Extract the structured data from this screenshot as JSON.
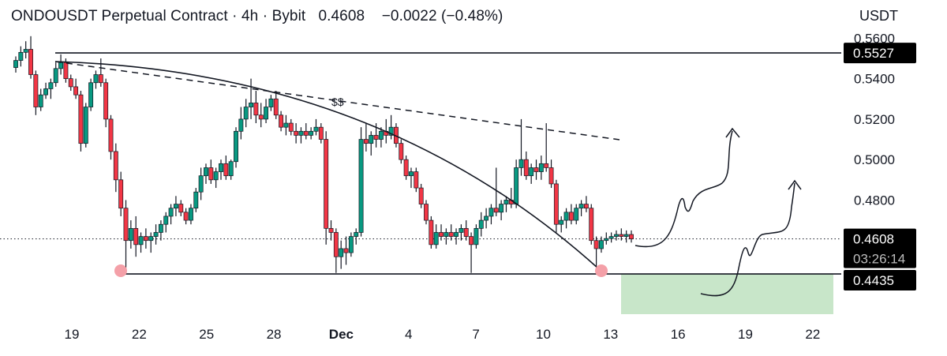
{
  "header": {
    "symbol": "ONDOUSDT Perpetual Contract",
    "sep1": "·",
    "interval": "4h",
    "sep2": "·",
    "exchange": "Bybit",
    "price": "0.4608",
    "change": "−0.0022 (−0.48%)"
  },
  "currency_label": "USDT",
  "chart_data": {
    "type": "candlestick",
    "ylim": [
      0.424,
      0.566
    ],
    "y_ticks": [
      "0.5600",
      "0.5400",
      "0.5200",
      "0.5000",
      "0.4800"
    ],
    "x_ticks": [
      {
        "label": "19",
        "day": 19
      },
      {
        "label": "22",
        "day": 22
      },
      {
        "label": "25",
        "day": 25
      },
      {
        "label": "28",
        "day": 28
      },
      {
        "label": "Dec",
        "day": 31,
        "bold": true
      },
      {
        "label": "4",
        "day": 34
      },
      {
        "label": "7",
        "day": 37
      },
      {
        "label": "10",
        "day": 40
      },
      {
        "label": "13",
        "day": 43
      },
      {
        "label": "16",
        "day": 46
      },
      {
        "label": "19",
        "day": 49
      },
      {
        "label": "22",
        "day": 52
      }
    ],
    "current_price": {
      "value": 0.4608,
      "label": "0.4608",
      "countdown": "03:26:14"
    },
    "levels": [
      {
        "value": 0.5527,
        "label": "0.5527"
      },
      {
        "value": 0.4435,
        "label": "0.4435"
      }
    ],
    "annotation_text": "$$",
    "colors": {
      "up": "#089981",
      "down": "#f23645",
      "zone": "#c8e6c9",
      "marker": "#f4a0a8",
      "tag": "#000000"
    },
    "candles": [
      [
        0.5455,
        0.551,
        0.543,
        0.549
      ],
      [
        0.549,
        0.556,
        0.546,
        0.553
      ],
      [
        0.553,
        0.5585,
        0.55,
        0.5545
      ],
      [
        0.5545,
        0.561,
        0.54,
        0.542
      ],
      [
        0.542,
        0.544,
        0.522,
        0.526
      ],
      [
        0.526,
        0.535,
        0.524,
        0.532
      ],
      [
        0.532,
        0.538,
        0.53,
        0.535
      ],
      [
        0.535,
        0.54,
        0.53,
        0.538
      ],
      [
        0.538,
        0.548,
        0.536,
        0.545
      ],
      [
        0.545,
        0.552,
        0.542,
        0.548
      ],
      [
        0.548,
        0.55,
        0.538,
        0.54
      ],
      [
        0.54,
        0.542,
        0.534,
        0.536
      ],
      [
        0.536,
        0.54,
        0.53,
        0.532
      ],
      [
        0.532,
        0.534,
        0.504,
        0.508
      ],
      [
        0.508,
        0.528,
        0.506,
        0.526
      ],
      [
        0.526,
        0.54,
        0.524,
        0.538
      ],
      [
        0.538,
        0.544,
        0.535,
        0.542
      ],
      [
        0.542,
        0.55,
        0.536,
        0.538
      ],
      [
        0.538,
        0.54,
        0.516,
        0.52
      ],
      [
        0.52,
        0.522,
        0.5,
        0.504
      ],
      [
        0.504,
        0.508,
        0.484,
        0.49
      ],
      [
        0.49,
        0.494,
        0.472,
        0.476
      ],
      [
        0.476,
        0.48,
        0.446,
        0.46
      ],
      [
        0.46,
        0.47,
        0.456,
        0.466
      ],
      [
        0.466,
        0.472,
        0.452,
        0.458
      ],
      [
        0.458,
        0.464,
        0.454,
        0.462
      ],
      [
        0.462,
        0.466,
        0.456,
        0.46
      ],
      [
        0.46,
        0.464,
        0.454,
        0.462
      ],
      [
        0.462,
        0.468,
        0.458,
        0.464
      ],
      [
        0.464,
        0.47,
        0.46,
        0.468
      ],
      [
        0.468,
        0.474,
        0.464,
        0.472
      ],
      [
        0.472,
        0.478,
        0.468,
        0.476
      ],
      [
        0.476,
        0.482,
        0.472,
        0.478
      ],
      [
        0.478,
        0.48,
        0.472,
        0.474
      ],
      [
        0.474,
        0.476,
        0.468,
        0.47
      ],
      [
        0.47,
        0.478,
        0.468,
        0.476
      ],
      [
        0.476,
        0.486,
        0.474,
        0.484
      ],
      [
        0.484,
        0.496,
        0.48,
        0.492
      ],
      [
        0.492,
        0.498,
        0.488,
        0.496
      ],
      [
        0.496,
        0.5,
        0.488,
        0.49
      ],
      [
        0.49,
        0.496,
        0.486,
        0.494
      ],
      [
        0.494,
        0.5,
        0.49,
        0.498
      ],
      [
        0.498,
        0.502,
        0.49,
        0.492
      ],
      [
        0.492,
        0.5,
        0.49,
        0.499
      ],
      [
        0.499,
        0.516,
        0.496,
        0.514
      ],
      [
        0.514,
        0.526,
        0.51,
        0.52
      ],
      [
        0.52,
        0.53,
        0.516,
        0.526
      ],
      [
        0.526,
        0.54,
        0.52,
        0.528
      ],
      [
        0.528,
        0.534,
        0.518,
        0.522
      ],
      [
        0.522,
        0.528,
        0.516,
        0.52
      ],
      [
        0.52,
        0.53,
        0.518,
        0.526
      ],
      [
        0.526,
        0.532,
        0.524,
        0.53
      ],
      [
        0.53,
        0.534,
        0.52,
        0.522
      ],
      [
        0.522,
        0.524,
        0.514,
        0.516
      ],
      [
        0.516,
        0.522,
        0.512,
        0.518
      ],
      [
        0.518,
        0.52,
        0.512,
        0.514
      ],
      [
        0.514,
        0.518,
        0.508,
        0.512
      ],
      [
        0.512,
        0.516,
        0.508,
        0.514
      ],
      [
        0.514,
        0.518,
        0.51,
        0.512
      ],
      [
        0.512,
        0.516,
        0.51,
        0.514
      ],
      [
        0.514,
        0.52,
        0.512,
        0.516
      ],
      [
        0.516,
        0.518,
        0.508,
        0.51
      ],
      [
        0.51,
        0.514,
        0.458,
        0.466
      ],
      [
        0.466,
        0.47,
        0.46,
        0.464
      ],
      [
        0.464,
        0.466,
        0.444,
        0.452
      ],
      [
        0.452,
        0.46,
        0.446,
        0.456
      ],
      [
        0.456,
        0.462,
        0.448,
        0.454
      ],
      [
        0.454,
        0.464,
        0.452,
        0.462
      ],
      [
        0.462,
        0.466,
        0.458,
        0.464
      ],
      [
        0.464,
        0.516,
        0.462,
        0.51
      ],
      [
        0.51,
        0.518,
        0.504,
        0.508
      ],
      [
        0.508,
        0.514,
        0.502,
        0.512
      ],
      [
        0.512,
        0.518,
        0.506,
        0.51
      ],
      [
        0.51,
        0.516,
        0.506,
        0.514
      ],
      [
        0.514,
        0.52,
        0.508,
        0.512
      ],
      [
        0.512,
        0.522,
        0.51,
        0.516
      ],
      [
        0.516,
        0.518,
        0.506,
        0.508
      ],
      [
        0.508,
        0.51,
        0.498,
        0.5
      ],
      [
        0.5,
        0.502,
        0.49,
        0.492
      ],
      [
        0.492,
        0.496,
        0.486,
        0.494
      ],
      [
        0.494,
        0.496,
        0.484,
        0.486
      ],
      [
        0.486,
        0.488,
        0.476,
        0.478
      ],
      [
        0.478,
        0.48,
        0.468,
        0.47
      ],
      [
        0.47,
        0.472,
        0.456,
        0.458
      ],
      [
        0.458,
        0.468,
        0.456,
        0.464
      ],
      [
        0.464,
        0.468,
        0.46,
        0.462
      ],
      [
        0.462,
        0.466,
        0.458,
        0.464
      ],
      [
        0.464,
        0.468,
        0.46,
        0.462
      ],
      [
        0.462,
        0.466,
        0.458,
        0.464
      ],
      [
        0.464,
        0.468,
        0.46,
        0.466
      ],
      [
        0.466,
        0.47,
        0.46,
        0.462
      ],
      [
        0.462,
        0.464,
        0.444,
        0.458
      ],
      [
        0.458,
        0.468,
        0.456,
        0.466
      ],
      [
        0.466,
        0.474,
        0.462,
        0.47
      ],
      [
        0.47,
        0.476,
        0.466,
        0.472
      ],
      [
        0.472,
        0.478,
        0.468,
        0.476
      ],
      [
        0.476,
        0.496,
        0.472,
        0.474
      ],
      [
        0.474,
        0.48,
        0.47,
        0.478
      ],
      [
        0.478,
        0.482,
        0.474,
        0.48
      ],
      [
        0.48,
        0.486,
        0.476,
        0.478
      ],
      [
        0.478,
        0.5,
        0.476,
        0.496
      ],
      [
        0.496,
        0.52,
        0.492,
        0.5
      ],
      [
        0.5,
        0.504,
        0.49,
        0.492
      ],
      [
        0.492,
        0.498,
        0.488,
        0.496
      ],
      [
        0.496,
        0.5,
        0.49,
        0.494
      ],
      [
        0.494,
        0.502,
        0.49,
        0.498
      ],
      [
        0.498,
        0.518,
        0.494,
        0.496
      ],
      [
        0.496,
        0.5,
        0.486,
        0.488
      ],
      [
        0.488,
        0.49,
        0.464,
        0.468
      ],
      [
        0.468,
        0.472,
        0.464,
        0.47
      ],
      [
        0.47,
        0.476,
        0.466,
        0.474
      ],
      [
        0.474,
        0.478,
        0.468,
        0.47
      ],
      [
        0.47,
        0.478,
        0.468,
        0.476
      ],
      [
        0.476,
        0.48,
        0.472,
        0.478
      ],
      [
        0.478,
        0.482,
        0.474,
        0.476
      ],
      [
        0.476,
        0.478,
        0.458,
        0.46
      ],
      [
        0.46,
        0.462,
        0.444,
        0.456
      ],
      [
        0.456,
        0.462,
        0.454,
        0.46
      ],
      [
        0.46,
        0.464,
        0.458,
        0.461
      ],
      [
        0.461,
        0.464,
        0.459,
        0.462
      ],
      [
        0.462,
        0.465,
        0.46,
        0.463
      ],
      [
        0.463,
        0.466,
        0.46,
        0.462
      ],
      [
        0.462,
        0.465,
        0.459,
        0.463
      ],
      [
        0.463,
        0.465,
        0.459,
        0.4608
      ]
    ]
  }
}
